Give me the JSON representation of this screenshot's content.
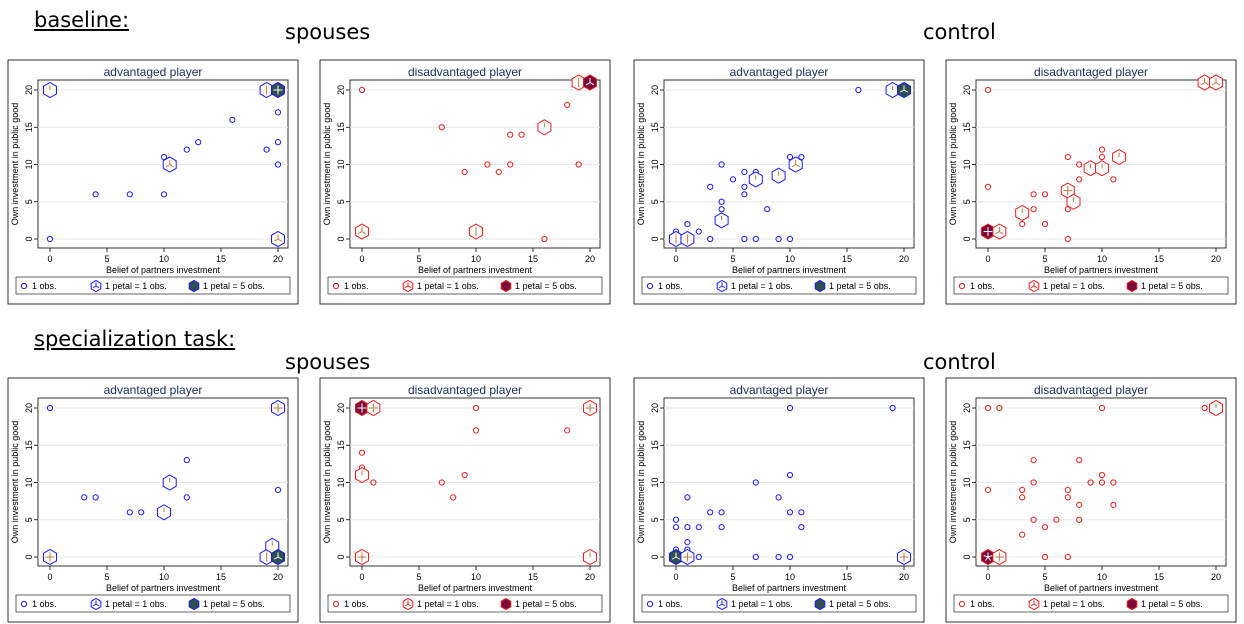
{
  "sections": [
    {
      "label": "baseline:",
      "groups": [
        "spouses",
        "control"
      ]
    },
    {
      "label": "specialization task:",
      "groups": [
        "spouses",
        "control"
      ]
    }
  ],
  "shared": {
    "xlabel": "Belief of partners investment",
    "ylabel": "Own investment in public good",
    "xlim": [
      0,
      20
    ],
    "ylim": [
      0,
      20
    ],
    "xticks": [
      0,
      5,
      10,
      15,
      20
    ],
    "yticks": [
      0,
      5,
      10,
      15,
      20
    ],
    "legend": {
      "position": "bottom",
      "items": [
        "1 obs.",
        "1 petal = 1 obs.",
        "1 petal = 5 obs."
      ]
    },
    "colors": {
      "advantaged": "#1a1aff",
      "disadvantaged": "#e8201c",
      "center_adv": "#2e4f4f",
      "center_dis": "#7a0a3a",
      "petal": "#c07840",
      "title": "#1a3060"
    }
  },
  "chart_data": [
    {
      "type": "scatter",
      "section": "baseline:",
      "group": "spouses",
      "title": "advantaged player",
      "color": "advantaged",
      "points": [
        [
          0,
          0
        ],
        [
          4,
          6
        ],
        [
          7,
          6
        ],
        [
          10,
          6
        ],
        [
          10,
          11
        ],
        [
          12,
          12
        ],
        [
          13,
          13
        ],
        [
          16,
          16
        ],
        [
          19,
          12
        ],
        [
          20,
          10
        ],
        [
          20,
          13
        ],
        [
          20,
          17
        ]
      ],
      "flowers": [
        [
          0,
          20,
          1,
          false
        ],
        [
          10.5,
          10,
          3,
          false
        ],
        [
          19,
          20,
          2,
          false
        ],
        [
          20,
          20,
          4,
          true
        ],
        [
          20,
          0,
          3,
          false
        ]
      ]
    },
    {
      "type": "scatter",
      "section": "baseline:",
      "group": "spouses",
      "title": "disadvantaged player",
      "color": "disadvantaged",
      "points": [
        [
          0,
          20
        ],
        [
          7,
          15
        ],
        [
          9,
          9
        ],
        [
          11,
          10
        ],
        [
          12,
          9
        ],
        [
          13,
          10
        ],
        [
          13,
          14
        ],
        [
          14,
          14
        ],
        [
          16,
          0
        ],
        [
          18,
          18
        ],
        [
          19,
          10
        ]
      ],
      "flowers": [
        [
          0,
          1,
          3,
          false
        ],
        [
          10,
          1,
          2,
          false
        ],
        [
          16,
          15,
          1,
          false
        ],
        [
          19,
          21,
          2,
          false
        ],
        [
          20,
          21,
          3,
          true
        ]
      ]
    },
    {
      "type": "scatter",
      "section": "baseline:",
      "group": "control",
      "title": "advantaged player",
      "color": "advantaged",
      "points": [
        [
          0,
          1
        ],
        [
          1,
          2
        ],
        [
          2,
          1
        ],
        [
          3,
          0
        ],
        [
          3,
          7
        ],
        [
          4,
          4
        ],
        [
          4,
          5
        ],
        [
          4,
          10
        ],
        [
          5,
          8
        ],
        [
          6,
          6
        ],
        [
          6,
          7
        ],
        [
          6,
          9
        ],
        [
          6,
          0
        ],
        [
          7,
          0
        ],
        [
          7,
          9
        ],
        [
          8,
          4
        ],
        [
          9,
          0
        ],
        [
          9,
          9
        ],
        [
          10,
          0
        ],
        [
          10,
          11
        ],
        [
          11,
          11
        ],
        [
          16,
          20
        ]
      ],
      "flowers": [
        [
          0,
          0,
          2,
          false
        ],
        [
          1,
          0,
          2,
          false
        ],
        [
          4,
          2.5,
          1,
          false
        ],
        [
          7,
          8,
          1,
          false
        ],
        [
          9,
          8.5,
          1,
          false
        ],
        [
          10.5,
          10,
          3,
          false
        ],
        [
          19,
          20,
          1,
          false
        ],
        [
          20,
          20,
          3,
          true
        ]
      ]
    },
    {
      "type": "scatter",
      "section": "baseline:",
      "group": "control",
      "title": "disadvantaged player",
      "color": "disadvantaged",
      "points": [
        [
          0,
          20
        ],
        [
          0,
          7
        ],
        [
          3,
          2
        ],
        [
          4,
          4
        ],
        [
          4,
          6
        ],
        [
          5,
          6
        ],
        [
          5,
          2
        ],
        [
          7,
          11
        ],
        [
          7,
          4
        ],
        [
          7,
          0
        ],
        [
          8,
          8
        ],
        [
          8,
          10
        ],
        [
          9,
          9
        ],
        [
          10,
          12
        ],
        [
          10,
          11
        ],
        [
          11,
          8
        ]
      ],
      "flowers": [
        [
          0,
          1,
          4,
          true
        ],
        [
          1,
          1,
          3,
          false
        ],
        [
          3,
          3.5,
          1,
          false
        ],
        [
          7,
          6.5,
          4,
          false
        ],
        [
          7.5,
          5,
          1,
          false
        ],
        [
          9,
          9.5,
          1,
          false
        ],
        [
          10,
          9.5,
          1,
          false
        ],
        [
          11.5,
          11,
          1,
          false
        ],
        [
          19,
          21,
          3,
          false
        ],
        [
          20,
          21,
          3,
          false
        ]
      ]
    },
    {
      "type": "scatter",
      "section": "specialization task:",
      "group": "spouses",
      "title": "advantaged player",
      "color": "advantaged",
      "points": [
        [
          0,
          20
        ],
        [
          3,
          8
        ],
        [
          4,
          8
        ],
        [
          7,
          6
        ],
        [
          8,
          6
        ],
        [
          12,
          13
        ],
        [
          12,
          8
        ],
        [
          20,
          9
        ]
      ],
      "flowers": [
        [
          0,
          0,
          4,
          false
        ],
        [
          10,
          6,
          1,
          false
        ],
        [
          10.5,
          10,
          1,
          false
        ],
        [
          19,
          0,
          2,
          false
        ],
        [
          19.5,
          1.5,
          1,
          false
        ],
        [
          20,
          20,
          4,
          false
        ],
        [
          20,
          0,
          3,
          true
        ]
      ]
    },
    {
      "type": "scatter",
      "section": "specialization task:",
      "group": "spouses",
      "title": "disadvantaged player",
      "color": "disadvantaged",
      "points": [
        [
          0,
          14
        ],
        [
          0,
          12
        ],
        [
          1,
          10
        ],
        [
          7,
          10
        ],
        [
          8,
          8
        ],
        [
          9,
          11
        ],
        [
          10,
          17
        ],
        [
          10,
          20
        ],
        [
          18,
          17
        ]
      ],
      "flowers": [
        [
          0,
          20,
          4,
          true
        ],
        [
          1,
          20,
          4,
          false
        ],
        [
          0,
          11,
          1,
          false
        ],
        [
          0,
          0,
          4,
          false
        ],
        [
          20,
          20,
          4,
          false
        ],
        [
          20,
          0,
          1,
          false
        ]
      ]
    },
    {
      "type": "scatter",
      "section": "specialization task:",
      "group": "control",
      "title": "advantaged player",
      "color": "advantaged",
      "points": [
        [
          0,
          5
        ],
        [
          0,
          4
        ],
        [
          0,
          1
        ],
        [
          1,
          8
        ],
        [
          1,
          4
        ],
        [
          1,
          2
        ],
        [
          1,
          1
        ],
        [
          2,
          4
        ],
        [
          2,
          0
        ],
        [
          3,
          6
        ],
        [
          4,
          6
        ],
        [
          4,
          4
        ],
        [
          7,
          10
        ],
        [
          7,
          0
        ],
        [
          9,
          8
        ],
        [
          9,
          0
        ],
        [
          10,
          20
        ],
        [
          10,
          11
        ],
        [
          10,
          6
        ],
        [
          10,
          0
        ],
        [
          11,
          6
        ],
        [
          11,
          4
        ],
        [
          19,
          20
        ]
      ],
      "flowers": [
        [
          0,
          0,
          3,
          true
        ],
        [
          1,
          0,
          4,
          false
        ],
        [
          20,
          0,
          4,
          false
        ]
      ]
    },
    {
      "type": "scatter",
      "section": "specialization task:",
      "group": "control",
      "title": "disadvantaged player",
      "color": "disadvantaged",
      "points": [
        [
          0,
          20
        ],
        [
          0,
          9
        ],
        [
          1,
          20
        ],
        [
          3,
          8
        ],
        [
          3,
          9
        ],
        [
          3,
          3
        ],
        [
          4,
          13
        ],
        [
          4,
          10
        ],
        [
          4,
          5
        ],
        [
          5,
          4
        ],
        [
          5,
          0
        ],
        [
          6,
          5
        ],
        [
          7,
          8
        ],
        [
          7,
          9
        ],
        [
          7,
          0
        ],
        [
          8,
          13
        ],
        [
          8,
          5
        ],
        [
          8,
          7
        ],
        [
          9,
          10
        ],
        [
          10,
          20
        ],
        [
          10,
          11
        ],
        [
          10,
          10
        ],
        [
          11,
          10
        ],
        [
          11,
          7
        ],
        [
          19,
          20
        ]
      ],
      "flowers": [
        [
          0,
          0,
          5,
          true
        ],
        [
          1,
          0,
          4,
          false
        ],
        [
          20,
          20,
          1,
          false
        ]
      ]
    }
  ]
}
